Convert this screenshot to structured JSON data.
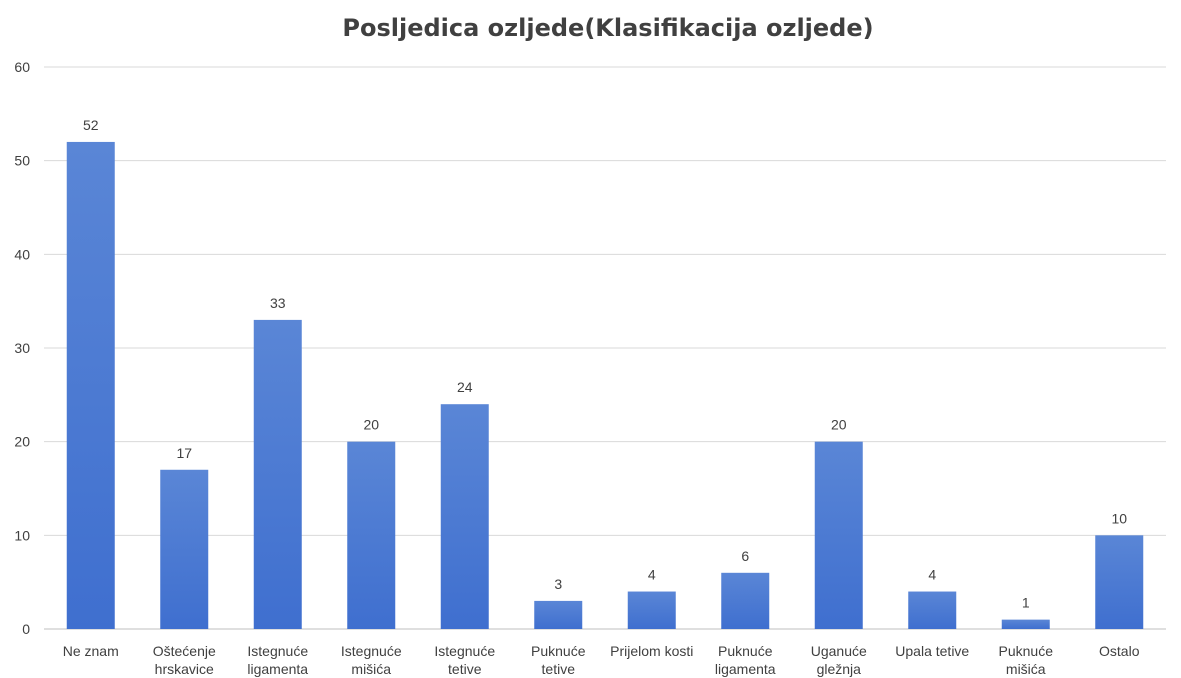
{
  "chart_data": {
    "type": "bar",
    "title": "Posljedica ozljede(Klasifikacija ozljede)",
    "xlabel": "",
    "ylabel": "",
    "ylim": [
      0,
      60
    ],
    "yticks": [
      0,
      10,
      20,
      30,
      40,
      50,
      60
    ],
    "grid": true,
    "legend": "none",
    "bar_color": "#3f6fcf",
    "bar_color_light": "#5a86d6",
    "categories": [
      [
        "Ne znam"
      ],
      [
        "Oštećenje",
        "hrskavice"
      ],
      [
        "Istegnuće",
        "ligamenta"
      ],
      [
        "Istegnuće",
        "mišića"
      ],
      [
        "Istegnuće",
        "tetive"
      ],
      [
        "Puknuće",
        "tetive"
      ],
      [
        "Prijelom kosti"
      ],
      [
        "Puknuće",
        "ligamenta"
      ],
      [
        "Uganuće",
        "gležnja"
      ],
      [
        "Upala tetive"
      ],
      [
        "Puknuće",
        "mišića"
      ],
      [
        "Ostalo"
      ]
    ],
    "values": [
      52,
      17,
      33,
      20,
      24,
      3,
      4,
      6,
      20,
      4,
      1,
      10
    ]
  }
}
